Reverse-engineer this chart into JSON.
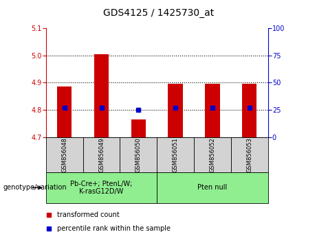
{
  "title": "GDS4125 / 1425730_at",
  "samples": [
    "GSM856048",
    "GSM856049",
    "GSM856050",
    "GSM856051",
    "GSM856052",
    "GSM856053"
  ],
  "bar_values": [
    4.885,
    5.005,
    4.765,
    4.895,
    4.895,
    4.895
  ],
  "percentile_values": [
    4.808,
    4.808,
    4.8,
    4.808,
    4.808,
    4.808
  ],
  "bar_bottom": 4.7,
  "ylim_left": [
    4.7,
    5.1
  ],
  "ylim_right": [
    0,
    100
  ],
  "yticks_left": [
    4.7,
    4.8,
    4.9,
    5.0,
    5.1
  ],
  "yticks_right": [
    0,
    25,
    50,
    75,
    100
  ],
  "bar_color": "#cc0000",
  "percentile_color": "#0000cc",
  "group_defs": [
    {
      "start": 0,
      "end": 2,
      "label": "Pb-Cre+; PtenL/W;\nK-rasG12D/W",
      "color": "#90ee90"
    },
    {
      "start": 3,
      "end": 5,
      "label": "Pten null",
      "color": "#90ee90"
    }
  ],
  "legend_items": [
    {
      "label": "transformed count",
      "color": "#cc0000"
    },
    {
      "label": "percentile rank within the sample",
      "color": "#0000cc"
    }
  ],
  "genotype_label": "genotype/variation",
  "sample_box_color": "#d3d3d3",
  "bar_width": 0.4,
  "title_fontsize": 10,
  "tick_fontsize": 7,
  "sample_fontsize": 6,
  "legend_fontsize": 7,
  "group_fontsize": 7
}
